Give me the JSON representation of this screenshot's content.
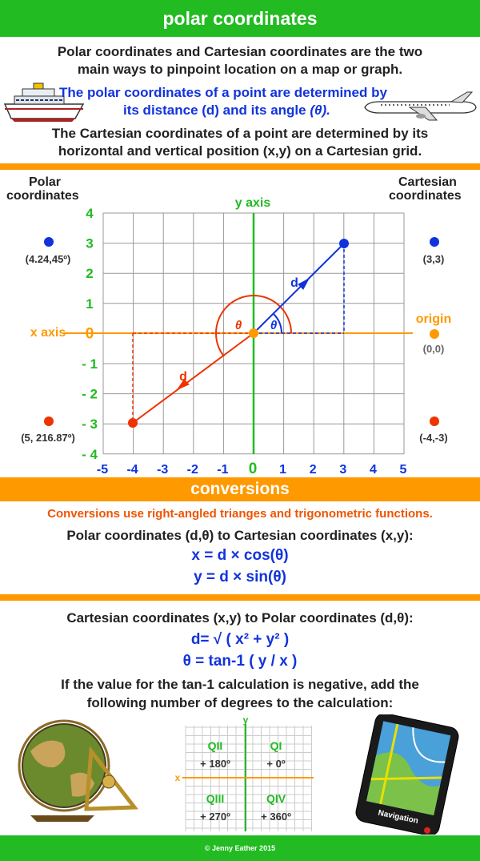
{
  "header": {
    "title": "polar coordinates"
  },
  "intro": {
    "line1": "Polar coordinates and Cartesian coordinates are the two",
    "line2": "main ways to pinpoint location on a map or graph.",
    "polar_line1": "The polar coordinates of a point are determined by",
    "polar_line2_a": "its distance (d) and its angle ",
    "polar_line2_theta": "(θ).",
    "cart_line1": "The Cartesian coordinates of a point are determined by its",
    "cart_line2": "horizontal and vertical position (x,y) on a Cartesian grid."
  },
  "graph": {
    "polar_label_1": "Polar",
    "polar_label_2": "coordinates",
    "cart_label_1": "Cartesian",
    "cart_label_2": "coordinates",
    "y_axis_label": "y axis",
    "x_axis_label": "x axis",
    "origin_label": "origin",
    "origin_coords": "(0,0)",
    "blue_polar": "(4.24,45º)",
    "blue_cart": "(3,3)",
    "red_polar": "(5, 216.87º)",
    "red_cart": "(-4,-3)",
    "y_ticks": [
      "4",
      "3",
      "2",
      "1",
      "0",
      "- 1",
      "- 2",
      "- 3",
      "- 4"
    ],
    "x_ticks": [
      "-5",
      "-4",
      "-3",
      "-2",
      "-1",
      "0",
      "1",
      "2",
      "3",
      "4",
      "5"
    ],
    "d_label": "d",
    "theta_label": "θ",
    "colors": {
      "axis_green": "#22bb22",
      "axis_orange": "#ff9900",
      "blue": "#1133dd",
      "red": "#ee3300",
      "grid": "#999999"
    }
  },
  "conversions": {
    "title": "conversions",
    "subtitle": "Conversions use right-angled trianges and trigonometric functions.",
    "p2c_heading": "Polar coordinates (d,θ) to Cartesian coordinates (x,y):",
    "p2c_x": "x = d × cos(θ)",
    "p2c_y": "y = d × sin(θ)",
    "c2p_heading": "Cartesian coordinates (x,y) to Polar coordinates (d,θ):",
    "c2p_d": "d= √ ( x² + y² )",
    "c2p_theta": "θ = tan-1 ( y / x )",
    "note1": "If the value for the tan-1 calculation is negative, add the",
    "note2": "following number of degrees to the calculation:"
  },
  "quadrants": {
    "y": "y",
    "x": "x",
    "q2": "QII",
    "q2_add": "+ 180º",
    "q1": "QI",
    "q1_add": "+ 0º",
    "q3": "QIII",
    "q3_add": "+ 270º",
    "q4": "QIV",
    "q4_add": "+ 360º"
  },
  "device": {
    "label": "Navigation"
  },
  "footer": {
    "credit": "© Jenny Eather 2015"
  }
}
